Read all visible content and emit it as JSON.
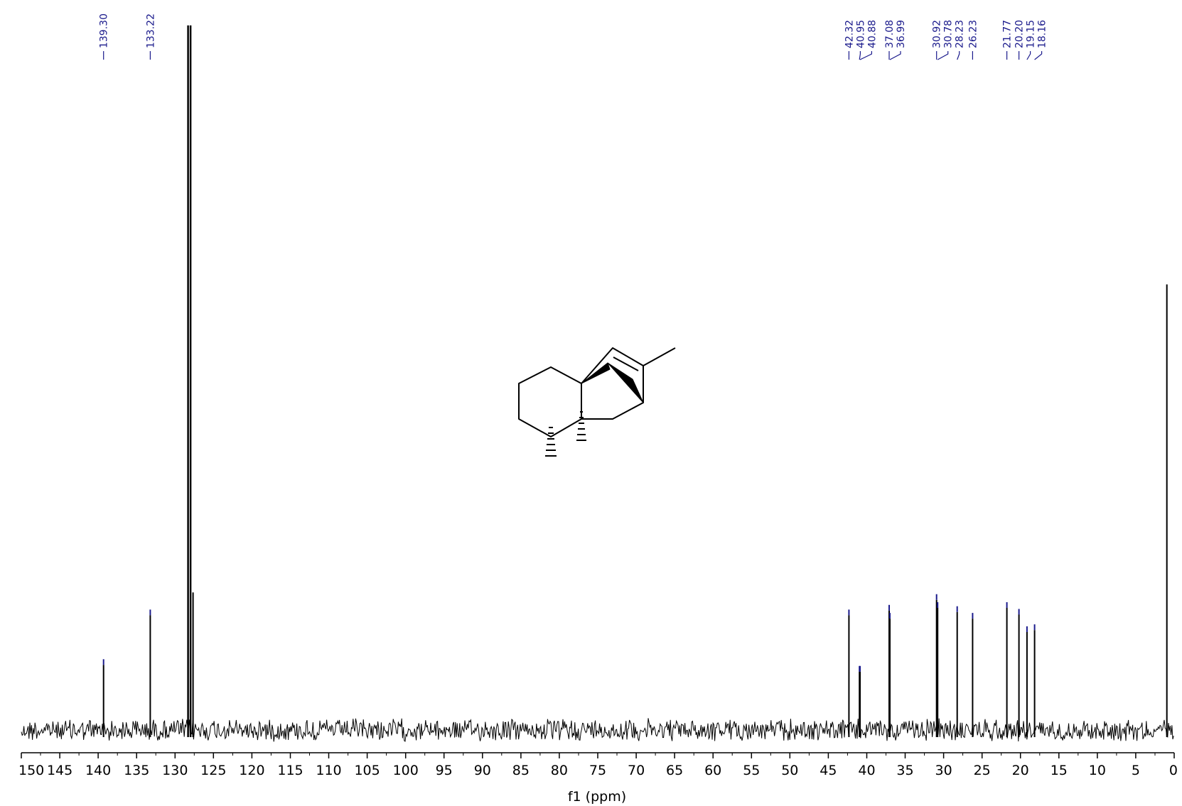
{
  "chart_data": {
    "type": "line",
    "title": "",
    "xlabel": "f1 (ppm)",
    "ylabel": "",
    "xlim": [
      150,
      0
    ],
    "x_ticks": [
      150,
      145,
      140,
      135,
      130,
      125,
      120,
      115,
      110,
      105,
      100,
      95,
      90,
      85,
      80,
      75,
      70,
      65,
      60,
      55,
      50,
      45,
      40,
      35,
      30,
      25,
      20,
      15,
      10,
      5,
      0
    ],
    "x_tick_labels": [
      "150",
      "145",
      "140",
      "135",
      "130",
      "125",
      "120",
      "115",
      "110",
      "105",
      "100",
      "95",
      "90",
      "85",
      "80",
      "75",
      "70",
      "65",
      "60",
      "55",
      "50",
      "45",
      "40",
      "35",
      "30",
      "25",
      "20",
      "15",
      "10",
      "5",
      "0"
    ],
    "grid": false,
    "series": [
      {
        "name": "",
        "peaks": [
          {
            "x": 139.3,
            "height": 0.097
          },
          {
            "x": 133.22,
            "height": 0.171
          },
          {
            "x": 128.3,
            "height": 1.05
          },
          {
            "x": 127.98,
            "height": 1.05
          },
          {
            "x": 127.66,
            "height": 0.205
          },
          {
            "x": 42.32,
            "height": 0.171
          },
          {
            "x": 40.95,
            "height": 0.087
          },
          {
            "x": 40.88,
            "height": 0.087
          },
          {
            "x": 37.08,
            "height": 0.178
          },
          {
            "x": 36.99,
            "height": 0.166
          },
          {
            "x": 30.92,
            "height": 0.194
          },
          {
            "x": 30.78,
            "height": 0.182
          },
          {
            "x": 28.23,
            "height": 0.176
          },
          {
            "x": 26.23,
            "height": 0.166
          },
          {
            "x": 21.77,
            "height": 0.182
          },
          {
            "x": 20.2,
            "height": 0.172
          },
          {
            "x": 19.15,
            "height": 0.146
          },
          {
            "x": 18.16,
            "height": 0.149
          },
          {
            "x": 0.95,
            "height": 0.664
          }
        ]
      }
    ],
    "peak_labels": [
      {
        "x": 139.3,
        "text": "139.30"
      },
      {
        "x": 133.22,
        "text": "133.22"
      },
      {
        "x": 42.32,
        "text": "42.32"
      },
      {
        "x": 40.95,
        "text": "40.95"
      },
      {
        "x": 40.88,
        "text": "40.88"
      },
      {
        "x": 37.08,
        "text": "37.08"
      },
      {
        "x": 36.99,
        "text": "36.99"
      },
      {
        "x": 30.92,
        "text": "30.92"
      },
      {
        "x": 30.78,
        "text": "30.78"
      },
      {
        "x": 28.23,
        "text": "28.23"
      },
      {
        "x": 26.23,
        "text": "26.23"
      },
      {
        "x": 21.77,
        "text": "21.77"
      },
      {
        "x": 20.2,
        "text": "20.20"
      },
      {
        "x": 19.15,
        "text": "19.15"
      },
      {
        "x": 18.16,
        "text": "18.16"
      }
    ],
    "colors": {
      "spectrum": "#000000",
      "peak_label": "#1a1a8c",
      "peak_marker": "#1a1a8c",
      "structure": "#000000"
    }
  }
}
